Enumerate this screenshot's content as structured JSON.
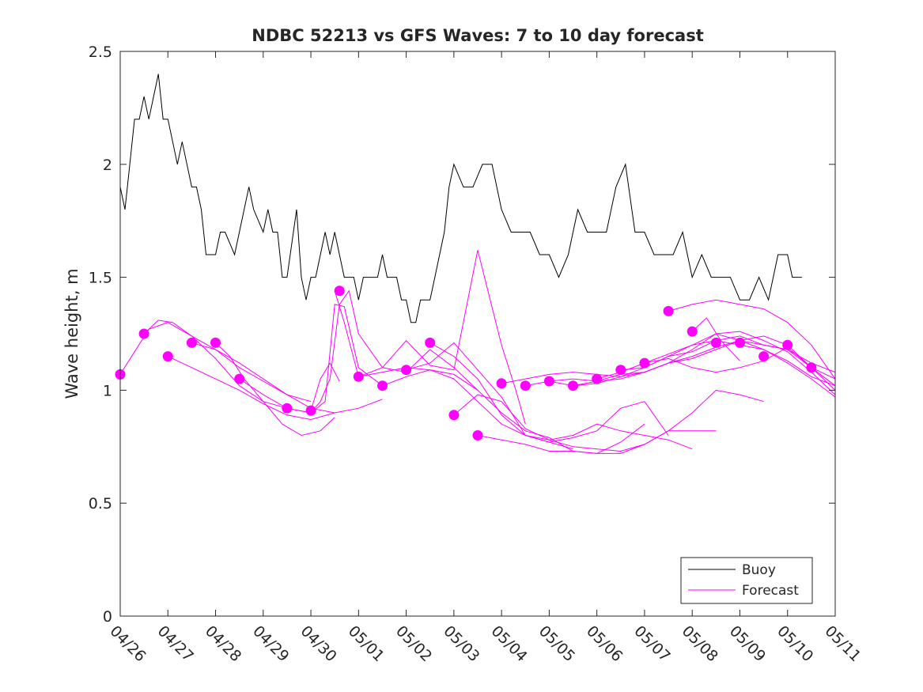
{
  "chart_data": {
    "type": "line",
    "title": "NDBC 52213 vs GFS Waves: 7 to 10 day forecast",
    "xlabel": "",
    "ylabel": "Wave height, m",
    "xlim": [
      "04/26",
      "05/11"
    ],
    "ylim": [
      0,
      2.5
    ],
    "x_ticks": [
      "04/26",
      "04/27",
      "04/28",
      "04/29",
      "04/30",
      "05/01",
      "05/02",
      "05/03",
      "05/04",
      "05/05",
      "05/06",
      "05/07",
      "05/08",
      "05/09",
      "05/10",
      "05/11"
    ],
    "y_ticks": [
      "0",
      "0.5",
      "1",
      "1.5",
      "2",
      "2.5"
    ],
    "grid": false,
    "legend_position": "bottom-right",
    "colors": {
      "buoy": "#000000",
      "forecast": "#ff00ff"
    },
    "series": [
      {
        "name": "Buoy",
        "color": "#000000",
        "x_days": [
          0.0,
          0.1,
          0.2,
          0.3,
          0.4,
          0.5,
          0.6,
          0.7,
          0.8,
          0.9,
          1.0,
          1.1,
          1.2,
          1.3,
          1.5,
          1.6,
          1.7,
          1.8,
          1.9,
          2.0,
          2.1,
          2.2,
          2.4,
          2.6,
          2.7,
          2.8,
          3.0,
          3.1,
          3.2,
          3.3,
          3.4,
          3.5,
          3.7,
          3.8,
          3.9,
          4.0,
          4.1,
          4.2,
          4.3,
          4.4,
          4.5,
          4.6,
          4.7,
          4.8,
          4.9,
          5.0,
          5.1,
          5.2,
          5.3,
          5.4,
          5.5,
          5.6,
          5.7,
          5.8,
          5.9,
          6.0,
          6.1,
          6.2,
          6.3,
          6.4,
          6.5,
          6.6,
          6.7,
          6.8,
          6.9,
          7.0,
          7.2,
          7.4,
          7.6,
          7.8,
          8.0,
          8.2,
          8.4,
          8.6,
          8.8,
          9.0,
          9.2,
          9.4,
          9.6,
          9.8,
          10.0,
          10.2,
          10.4,
          10.6,
          10.8,
          11.0,
          11.2,
          11.4,
          11.6,
          11.8,
          12.0,
          12.2,
          12.4,
          12.6,
          12.8,
          13.0,
          13.2,
          13.4,
          13.6,
          13.8,
          14.0,
          14.1,
          14.2,
          14.3
        ],
        "values": [
          1.9,
          1.8,
          2.0,
          2.2,
          2.2,
          2.3,
          2.2,
          2.3,
          2.4,
          2.2,
          2.2,
          2.1,
          2.0,
          2.1,
          1.9,
          1.9,
          1.8,
          1.6,
          1.6,
          1.6,
          1.7,
          1.7,
          1.6,
          1.8,
          1.9,
          1.8,
          1.7,
          1.8,
          1.7,
          1.7,
          1.5,
          1.5,
          1.8,
          1.5,
          1.4,
          1.5,
          1.5,
          1.6,
          1.7,
          1.6,
          1.7,
          1.6,
          1.5,
          1.5,
          1.5,
          1.4,
          1.5,
          1.5,
          1.5,
          1.5,
          1.6,
          1.5,
          1.5,
          1.5,
          1.4,
          1.4,
          1.3,
          1.3,
          1.4,
          1.4,
          1.4,
          1.5,
          1.6,
          1.7,
          1.9,
          2.0,
          1.9,
          1.9,
          2.0,
          2.0,
          1.8,
          1.7,
          1.7,
          1.7,
          1.6,
          1.6,
          1.5,
          1.6,
          1.8,
          1.7,
          1.7,
          1.7,
          1.9,
          2.0,
          1.7,
          1.7,
          1.6,
          1.6,
          1.6,
          1.7,
          1.5,
          1.6,
          1.5,
          1.5,
          1.5,
          1.4,
          1.4,
          1.5,
          1.4,
          1.6,
          1.6,
          1.5,
          1.5,
          1.5
        ]
      },
      {
        "name": "Forecast",
        "color": "#ff00ff",
        "runs": [
          {
            "x_days": [
              0.0,
              0.3,
              0.6,
              1.0,
              1.5,
              2.0,
              2.5,
              3.0,
              3.5
            ],
            "values": [
              1.07,
              1.17,
              1.27,
              1.3,
              1.24,
              1.14,
              1.02,
              0.95,
              0.92
            ]
          },
          {
            "x_days": [
              0.5,
              0.8,
              1.1,
              1.5,
              2.0,
              2.5,
              3.0,
              3.5,
              4.0
            ],
            "values": [
              1.25,
              1.31,
              1.3,
              1.24,
              1.18,
              1.1,
              1.04,
              0.98,
              0.95
            ]
          },
          {
            "x_days": [
              1.0,
              1.5,
              2.0,
              2.5,
              3.0,
              3.5,
              4.0,
              4.5
            ],
            "values": [
              1.15,
              1.1,
              1.05,
              1.0,
              0.94,
              0.89,
              0.87,
              0.9
            ]
          },
          {
            "x_days": [
              1.5,
              2.0,
              2.5,
              3.0,
              3.5,
              4.0,
              4.5,
              5.0,
              5.5
            ],
            "values": [
              1.21,
              1.18,
              1.12,
              1.05,
              0.98,
              0.92,
              0.9,
              0.92,
              0.96
            ]
          },
          {
            "x_days": [
              2.0,
              2.3,
              2.6,
              3.0,
              3.4,
              3.8,
              4.2,
              4.5
            ],
            "values": [
              1.21,
              1.15,
              1.05,
              0.95,
              0.85,
              0.8,
              0.82,
              0.88
            ]
          },
          {
            "x_days": [
              2.5,
              3.0,
              3.5,
              4.0,
              4.3,
              4.5,
              4.7,
              5.0,
              5.5
            ],
            "values": [
              1.05,
              0.98,
              0.92,
              0.9,
              0.95,
              1.38,
              1.37,
              1.1,
              1.02
            ]
          },
          {
            "x_days": [
              3.5,
              4.0,
              4.2,
              4.4,
              4.6,
              4.8,
              5.0,
              5.5,
              6.0,
              6.5,
              7.0,
              7.5
            ],
            "values": [
              0.92,
              0.9,
              0.95,
              1.05,
              1.38,
              1.44,
              1.25,
              1.1,
              1.08,
              1.18,
              1.1,
              1.0
            ]
          },
          {
            "x_days": [
              4.0,
              4.2,
              4.4,
              4.6
            ],
            "values": [
              0.91,
              1.05,
              1.12,
              1.04
            ]
          },
          {
            "x_days": [
              4.5,
              4.7,
              5.0,
              5.5,
              6.0,
              6.5,
              7.0,
              7.5,
              8.0,
              8.3,
              8.5
            ],
            "values": [
              1.44,
              1.3,
              1.06,
              1.1,
              1.22,
              1.11,
              1.09,
              1.62,
              1.2,
              1.0,
              0.85
            ]
          },
          {
            "x_days": [
              5.0,
              5.5,
              6.0,
              6.5,
              7.0,
              7.5,
              8.0,
              8.5,
              9.0,
              9.5
            ],
            "values": [
              1.06,
              1.08,
              1.1,
              1.09,
              1.05,
              0.95,
              0.85,
              0.8,
              0.77,
              0.74
            ]
          },
          {
            "x_days": [
              5.5,
              6.0,
              6.5,
              7.0,
              7.5,
              8.0,
              8.5,
              9.0,
              9.5,
              10.0,
              10.5,
              11.0
            ],
            "values": [
              1.02,
              1.06,
              1.09,
              1.07,
              1.0,
              0.9,
              0.82,
              0.79,
              0.73,
              0.72,
              0.77,
              0.85
            ]
          },
          {
            "x_days": [
              6.0,
              6.5,
              7.0,
              7.5,
              8.0,
              8.5,
              9.0,
              9.5,
              10.0,
              10.5,
              11.0,
              11.5
            ],
            "values": [
              1.09,
              1.12,
              1.21,
              1.09,
              0.97,
              0.8,
              0.77,
              0.79,
              0.82,
              0.92,
              0.95,
              0.8
            ]
          },
          {
            "x_days": [
              6.5,
              7.0,
              7.5,
              8.0,
              8.5,
              9.0,
              9.5,
              10.0,
              10.5,
              11.0,
              11.5,
              12.0
            ],
            "values": [
              1.21,
              1.15,
              1.05,
              0.89,
              0.8,
              0.78,
              0.8,
              0.85,
              0.82,
              0.8,
              0.78,
              0.74
            ]
          },
          {
            "x_days": [
              7.0,
              7.5,
              8.0,
              8.5,
              9.0,
              9.5,
              10.0,
              10.5,
              11.0,
              11.5,
              12.0,
              12.5
            ],
            "values": [
              0.89,
              0.98,
              0.95,
              0.83,
              0.78,
              0.75,
              0.74,
              0.73,
              0.76,
              0.82,
              0.82,
              0.82
            ]
          },
          {
            "x_days": [
              7.5,
              8.0,
              8.5,
              9.0,
              9.5,
              10.0,
              10.5,
              11.0,
              11.5,
              12.0,
              12.5,
              13.0,
              13.5
            ],
            "values": [
              0.8,
              0.78,
              0.76,
              0.73,
              0.73,
              0.72,
              0.72,
              0.76,
              0.82,
              0.9,
              1.0,
              0.98,
              0.95
            ]
          },
          {
            "x_days": [
              8.0,
              8.5,
              9.0,
              9.5,
              10.0,
              10.5,
              11.0,
              11.5,
              12.0,
              12.5,
              13.0,
              13.5,
              14.0,
              14.5,
              15.0
            ],
            "values": [
              1.03,
              1.05,
              1.07,
              1.08,
              1.07,
              1.06,
              1.08,
              1.12,
              1.15,
              1.19,
              1.22,
              1.24,
              1.2,
              1.1,
              1.05
            ]
          },
          {
            "x_days": [
              8.5,
              9.0,
              9.5,
              10.0,
              10.5,
              11.0,
              11.5,
              12.0,
              12.5,
              13.0,
              13.5,
              14.0,
              14.5,
              15.0
            ],
            "values": [
              1.02,
              1.04,
              1.05,
              1.04,
              1.05,
              1.08,
              1.12,
              1.14,
              1.18,
              1.22,
              1.2,
              1.18,
              1.12,
              1.08
            ]
          },
          {
            "x_days": [
              9.0,
              9.5,
              10.0,
              10.5,
              11.0,
              11.5,
              12.0,
              12.5,
              13.0,
              13.5,
              14.0,
              14.5,
              15.0
            ],
            "values": [
              1.04,
              1.02,
              1.03,
              1.06,
              1.1,
              1.15,
              1.17,
              1.22,
              1.24,
              1.2,
              1.18,
              1.1,
              1.02
            ]
          },
          {
            "x_days": [
              9.5,
              10.0,
              10.5,
              11.0,
              11.5,
              12.0,
              12.5,
              13.0,
              13.5,
              14.0,
              14.5,
              15.0
            ],
            "values": [
              1.02,
              1.04,
              1.07,
              1.08,
              1.12,
              1.18,
              1.25,
              1.26,
              1.22,
              1.17,
              1.08,
              0.98
            ]
          },
          {
            "x_days": [
              10.0,
              10.5,
              11.0,
              11.5,
              12.0,
              12.5,
              13.0,
              13.5,
              14.0,
              14.5,
              15.0
            ],
            "values": [
              1.05,
              1.08,
              1.12,
              1.16,
              1.2,
              1.22,
              1.2,
              1.18,
              1.13,
              1.06,
              1.02
            ]
          },
          {
            "x_days": [
              10.5,
              11.0,
              11.5,
              12.0,
              12.5,
              13.0,
              13.5,
              14.0,
              14.5,
              15.0
            ],
            "values": [
              1.09,
              1.1,
              1.15,
              1.2,
              1.25,
              1.22,
              1.18,
              1.12,
              1.05,
              0.97
            ]
          },
          {
            "x_days": [
              11.0,
              11.5,
              12.0,
              12.5,
              13.0,
              13.5,
              14.0,
              14.5,
              15.0
            ],
            "values": [
              1.12,
              1.14,
              1.1,
              1.08,
              1.1,
              1.13,
              1.19,
              1.1,
              1.0
            ]
          },
          {
            "x_days": [
              11.5,
              12.0,
              12.5,
              13.0,
              13.5,
              14.0,
              14.5,
              15.0
            ],
            "values": [
              1.35,
              1.38,
              1.4,
              1.38,
              1.36,
              1.3,
              1.2,
              1.05
            ]
          },
          {
            "x_days": [
              12.0,
              12.3,
              12.6,
              13.0
            ],
            "values": [
              1.26,
              1.32,
              1.22,
              1.13
            ]
          }
        ],
        "markers": {
          "x_days": [
            0.0,
            0.5,
            1.0,
            1.5,
            2.0,
            2.5,
            3.5,
            4.0,
            4.6,
            5.0,
            5.5,
            6.0,
            6.5,
            7.0,
            7.5,
            8.0,
            8.5,
            9.0,
            9.5,
            10.0,
            10.5,
            11.0,
            11.5,
            12.0,
            12.5,
            13.0,
            13.5,
            14.0,
            14.5
          ],
          "values": [
            1.07,
            1.25,
            1.15,
            1.21,
            1.21,
            1.05,
            0.92,
            0.91,
            1.44,
            1.06,
            1.02,
            1.09,
            1.21,
            0.89,
            0.8,
            1.03,
            1.02,
            1.04,
            1.02,
            1.05,
            1.09,
            1.12,
            1.35,
            1.26,
            1.21,
            1.21,
            1.15,
            1.2,
            1.1
          ]
        }
      }
    ]
  }
}
